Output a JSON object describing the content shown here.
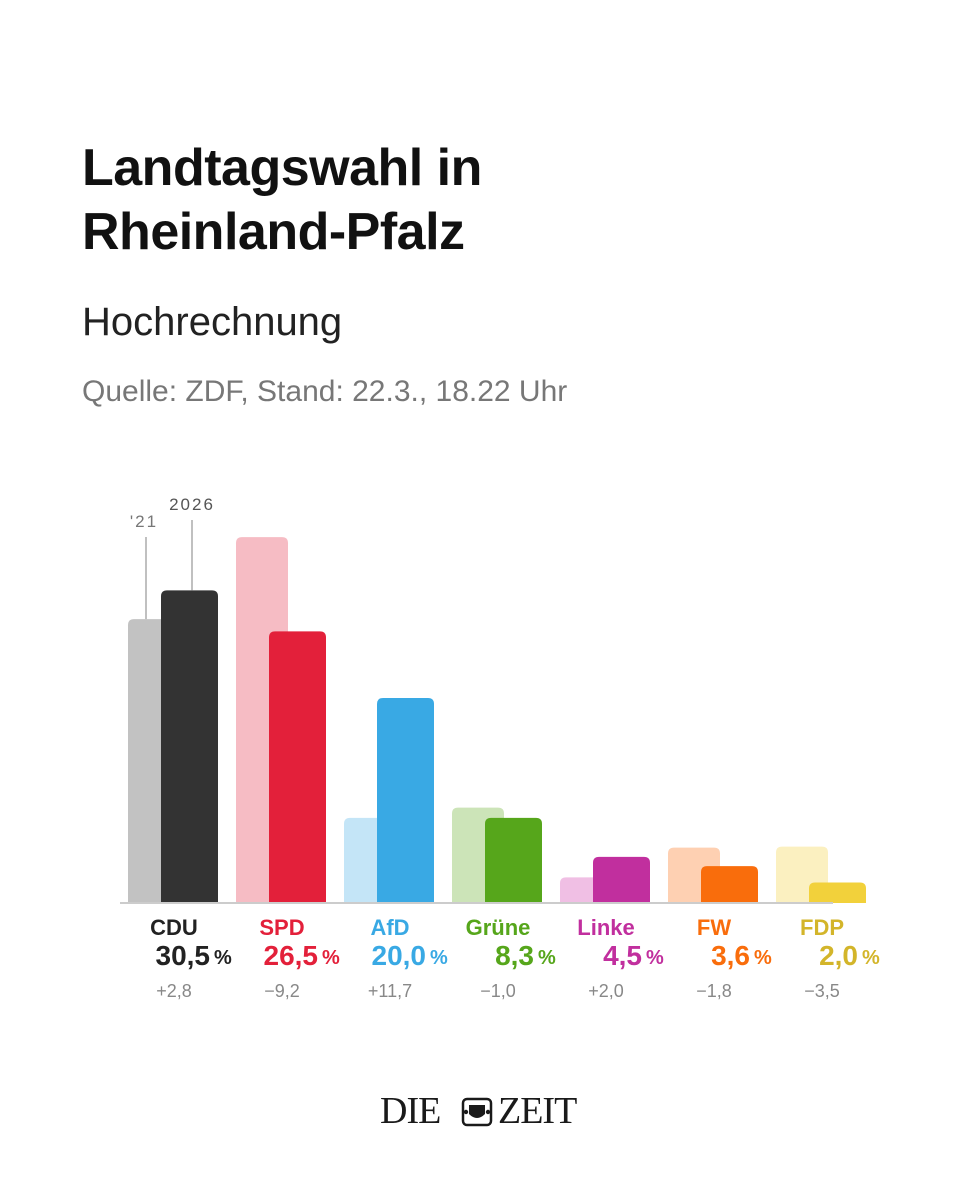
{
  "header": {
    "title_line1": "Landtagswahl in",
    "title_line2": "Rheinland-Pfalz",
    "subtitle": "Hochrechnung",
    "source": "Quelle: ZDF, Stand: 22.3., 18.22 Uhr"
  },
  "chart_data": {
    "type": "bar",
    "title": "Landtagswahl in Rheinland-Pfalz",
    "subtitle": "Hochrechnung",
    "categories": [
      "CDU",
      "SPD",
      "AfD",
      "Grüne",
      "Linke",
      "FW",
      "FDP"
    ],
    "series": [
      {
        "name": "'21",
        "values": [
          27.7,
          35.7,
          8.3,
          9.3,
          2.5,
          5.4,
          5.5
        ]
      },
      {
        "name": "2026",
        "values": [
          30.5,
          26.5,
          20.0,
          8.3,
          4.5,
          3.6,
          2.0
        ]
      }
    ],
    "value_labels": [
      "30,5",
      "26,5",
      "20,0",
      "8,3",
      "4,5",
      "3,6",
      "2,0"
    ],
    "change_labels": [
      "+2,8",
      "−9,2",
      "+11,7",
      "−1,0",
      "+2,0",
      "−1,8",
      "−3,5"
    ],
    "unit": "%",
    "colors_2026": [
      "#333333",
      "#e3203a",
      "#39a9e4",
      "#56a61b",
      "#c12f9e",
      "#f96d0c",
      "#f2d13b"
    ],
    "colors_2021": [
      "#c2c2c2",
      "#f6bcc4",
      "#c4e5f7",
      "#cce4b8",
      "#f0bfe4",
      "#fed0b2",
      "#fbf0c0"
    ],
    "label_colors": [
      "#222222",
      "#e3203a",
      "#39a9e4",
      "#56a61b",
      "#c12f9e",
      "#f96d0c",
      "#d3b52a"
    ],
    "ylim": [
      0,
      36
    ]
  },
  "logo": {
    "left": "DIE",
    "right": "ZEIT"
  }
}
